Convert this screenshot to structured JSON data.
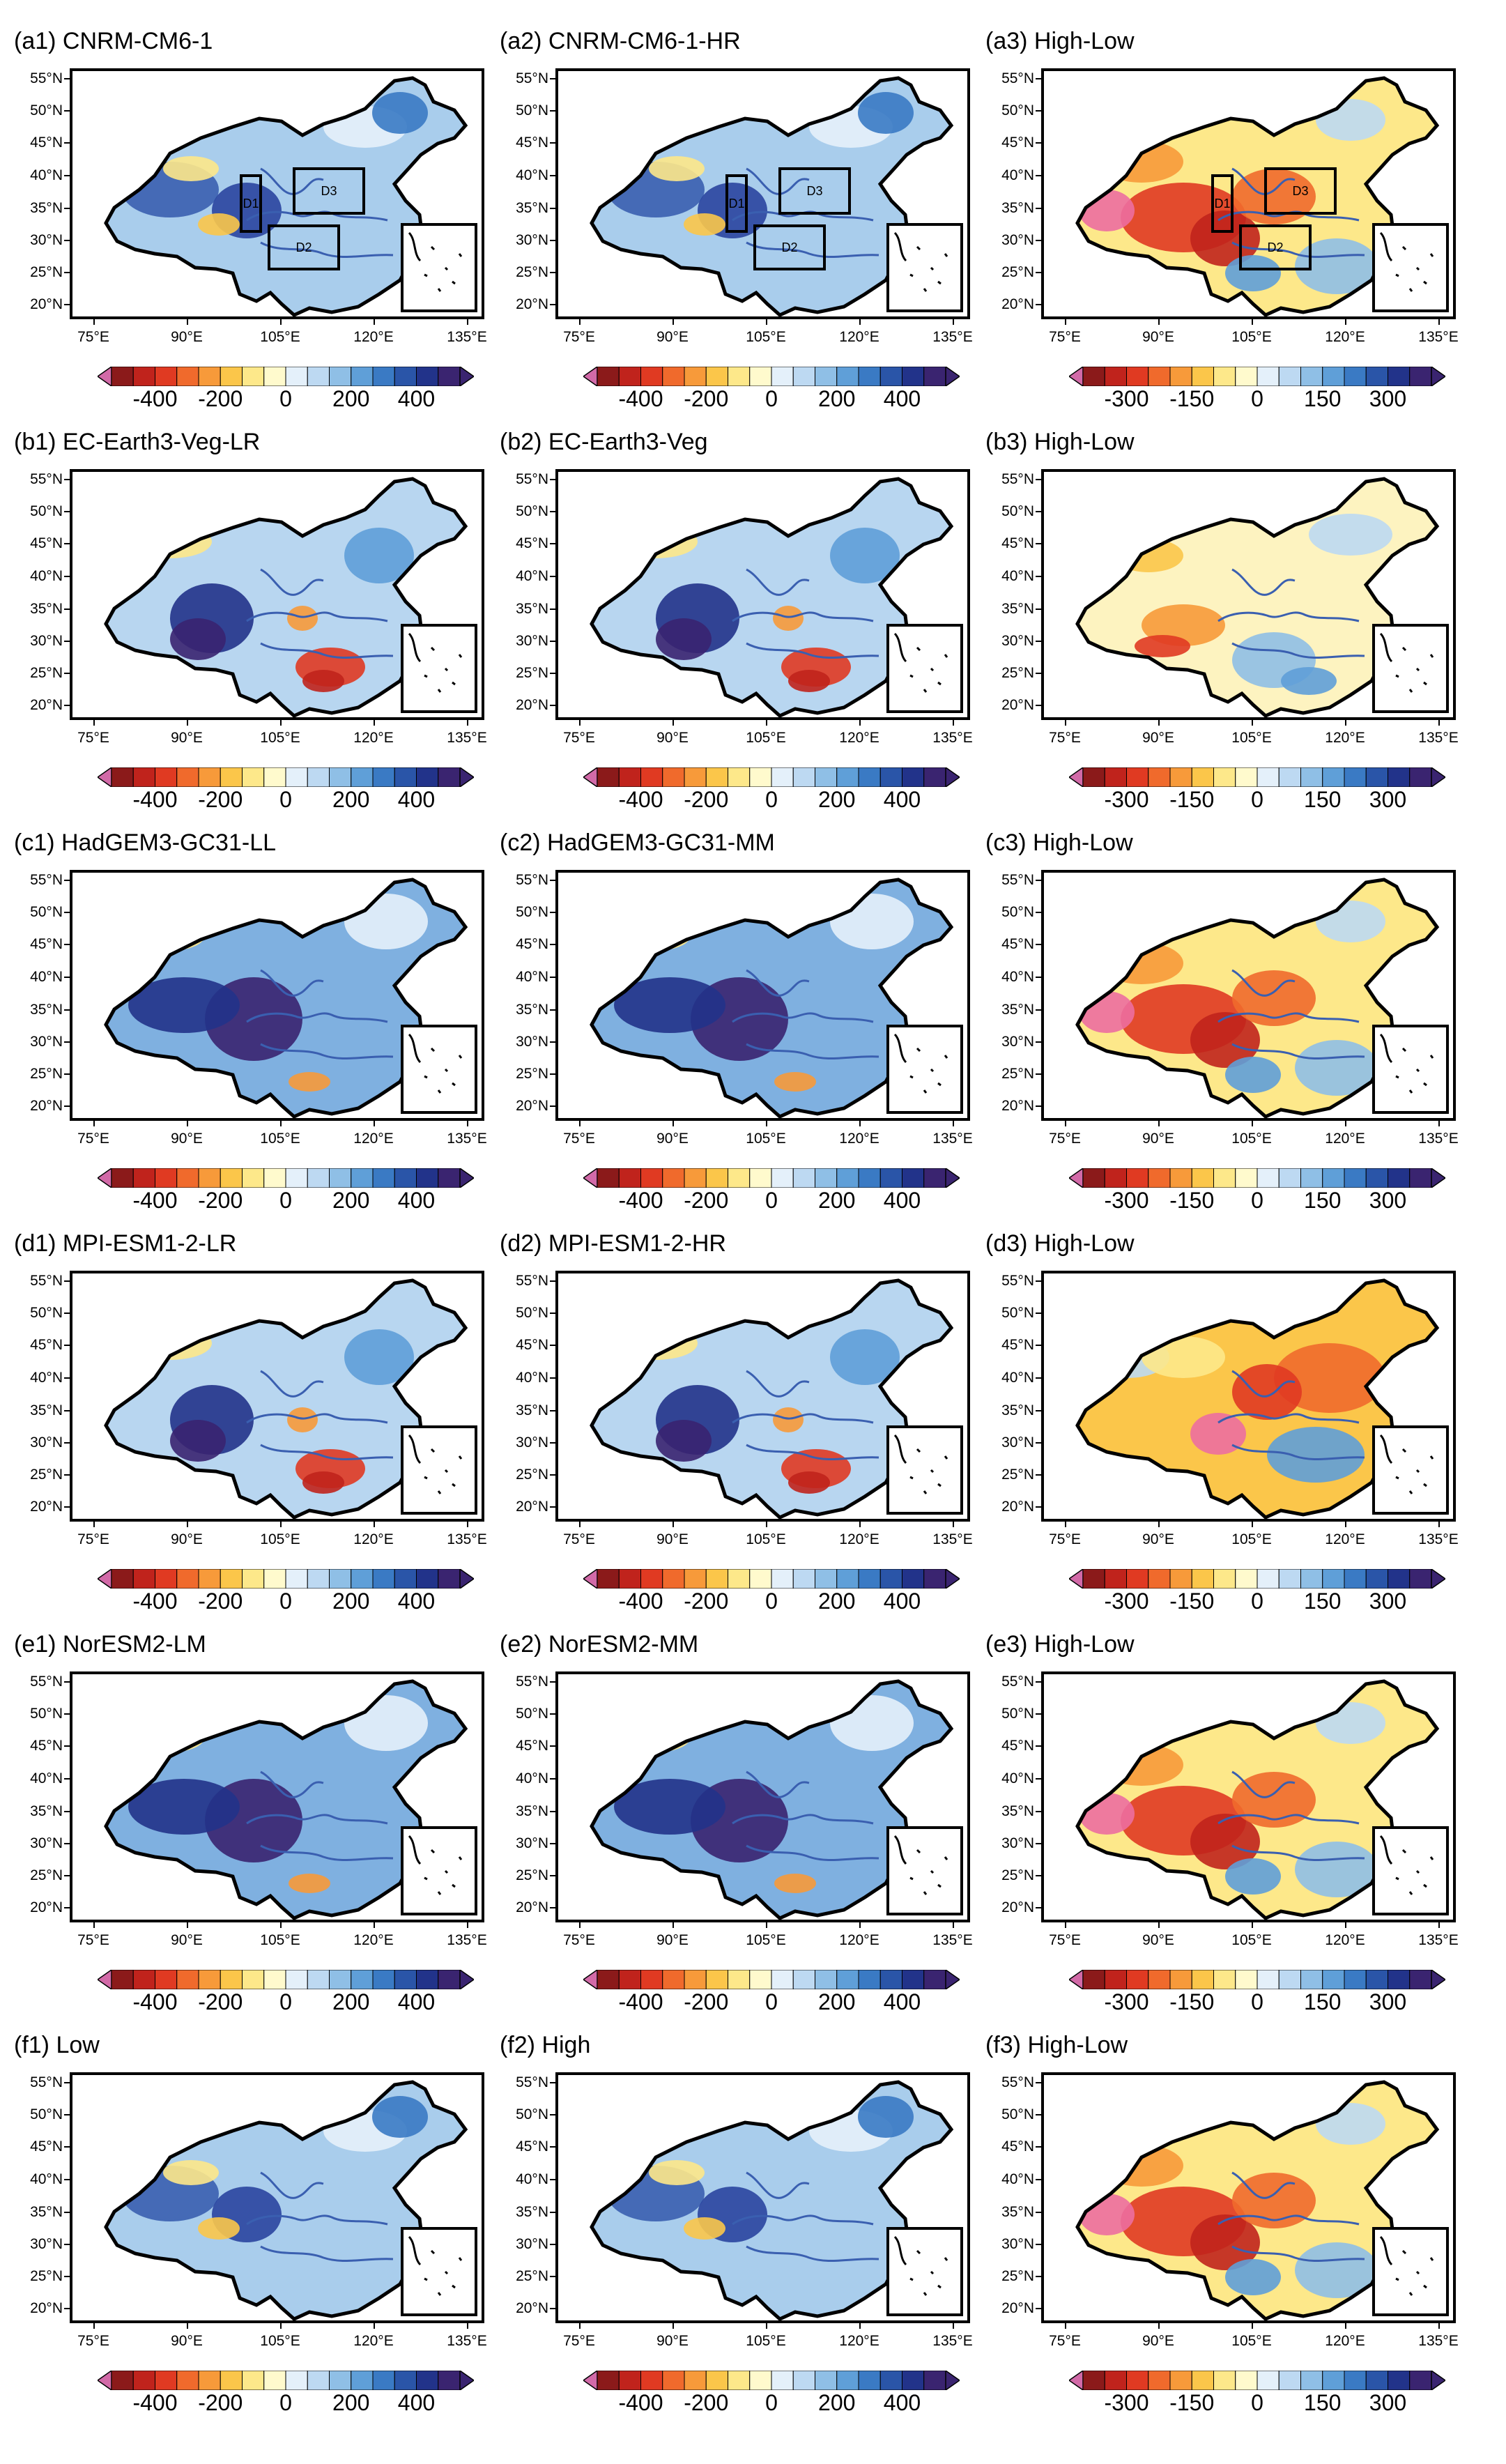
{
  "figure": {
    "lat_labels": [
      "55°N",
      "50°N",
      "45°N",
      "40°N",
      "35°N",
      "30°N",
      "25°N",
      "20°N"
    ],
    "lon_labels": [
      "75°E",
      "90°E",
      "105°E",
      "120°E",
      "135°E"
    ],
    "colorbars": {
      "model": {
        "labels": [
          "-400",
          "-200",
          "0",
          "200",
          "400"
        ],
        "colors": [
          "#8b1a1a",
          "#c0231c",
          "#e03a22",
          "#f06a2c",
          "#f79a3a",
          "#fbc64a",
          "#fde88a",
          "#fffacd",
          "#e4f0fa",
          "#bdd9f2",
          "#8fbfe6",
          "#5f9fd8",
          "#3a7ac4",
          "#2a55a8",
          "#22338a",
          "#3a2470"
        ]
      },
      "diff": {
        "labels": [
          "-300",
          "-150",
          "0",
          "150",
          "300"
        ],
        "colors": [
          "#8b1a1a",
          "#c0231c",
          "#e03a22",
          "#f06a2c",
          "#f79a3a",
          "#fbc64a",
          "#fde88a",
          "#fffacd",
          "#e4f0fa",
          "#bdd9f2",
          "#8fbfe6",
          "#5f9fd8",
          "#3a7ac4",
          "#2a55a8",
          "#22338a",
          "#3a2470"
        ]
      }
    },
    "region_labels": [
      "D1",
      "D2",
      "D3"
    ],
    "rows": [
      {
        "panels": [
          {
            "title": "(a1) CNRM-CM6-1",
            "scale": "model",
            "regions": true,
            "style": "blue"
          },
          {
            "title": "(a2) CNRM-CM6-1-HR",
            "scale": "model",
            "regions": true,
            "style": "blue"
          },
          {
            "title": "(a3) High-Low",
            "scale": "diff",
            "regions": true,
            "style": "diff-red"
          }
        ]
      },
      {
        "panels": [
          {
            "title": "(b1) EC-Earth3-Veg-LR",
            "scale": "model",
            "regions": false,
            "style": "blue-red-south"
          },
          {
            "title": "(b2) EC-Earth3-Veg",
            "scale": "model",
            "regions": false,
            "style": "blue-red-south"
          },
          {
            "title": "(b3) High-Low",
            "scale": "diff",
            "regions": false,
            "style": "diff-light"
          }
        ]
      },
      {
        "panels": [
          {
            "title": "(c1) HadGEM3-GC31-LL",
            "scale": "model",
            "regions": false,
            "style": "blue-strong"
          },
          {
            "title": "(c2) HadGEM3-GC31-MM",
            "scale": "model",
            "regions": false,
            "style": "blue-strong"
          },
          {
            "title": "(c3) High-Low",
            "scale": "diff",
            "regions": false,
            "style": "diff-red"
          }
        ]
      },
      {
        "panels": [
          {
            "title": "(d1) MPI-ESM1-2-LR",
            "scale": "model",
            "regions": false,
            "style": "blue-red-south"
          },
          {
            "title": "(d2) MPI-ESM1-2-HR",
            "scale": "model",
            "regions": false,
            "style": "blue-red-south"
          },
          {
            "title": "(d3) High-Low",
            "scale": "diff",
            "regions": false,
            "style": "diff-orange"
          }
        ]
      },
      {
        "panels": [
          {
            "title": "(e1) NorESM2-LM",
            "scale": "model",
            "regions": false,
            "style": "blue-strong"
          },
          {
            "title": "(e2) NorESM2-MM",
            "scale": "model",
            "regions": false,
            "style": "blue-strong"
          },
          {
            "title": "(e3) High-Low",
            "scale": "diff",
            "regions": false,
            "style": "diff-red"
          }
        ]
      },
      {
        "panels": [
          {
            "title": "(f1) Low",
            "scale": "model",
            "regions": false,
            "style": "blue"
          },
          {
            "title": "(f2) High",
            "scale": "model",
            "regions": false,
            "style": "blue"
          },
          {
            "title": "(f3) High-Low",
            "scale": "diff",
            "regions": false,
            "style": "diff-red"
          }
        ]
      }
    ]
  }
}
